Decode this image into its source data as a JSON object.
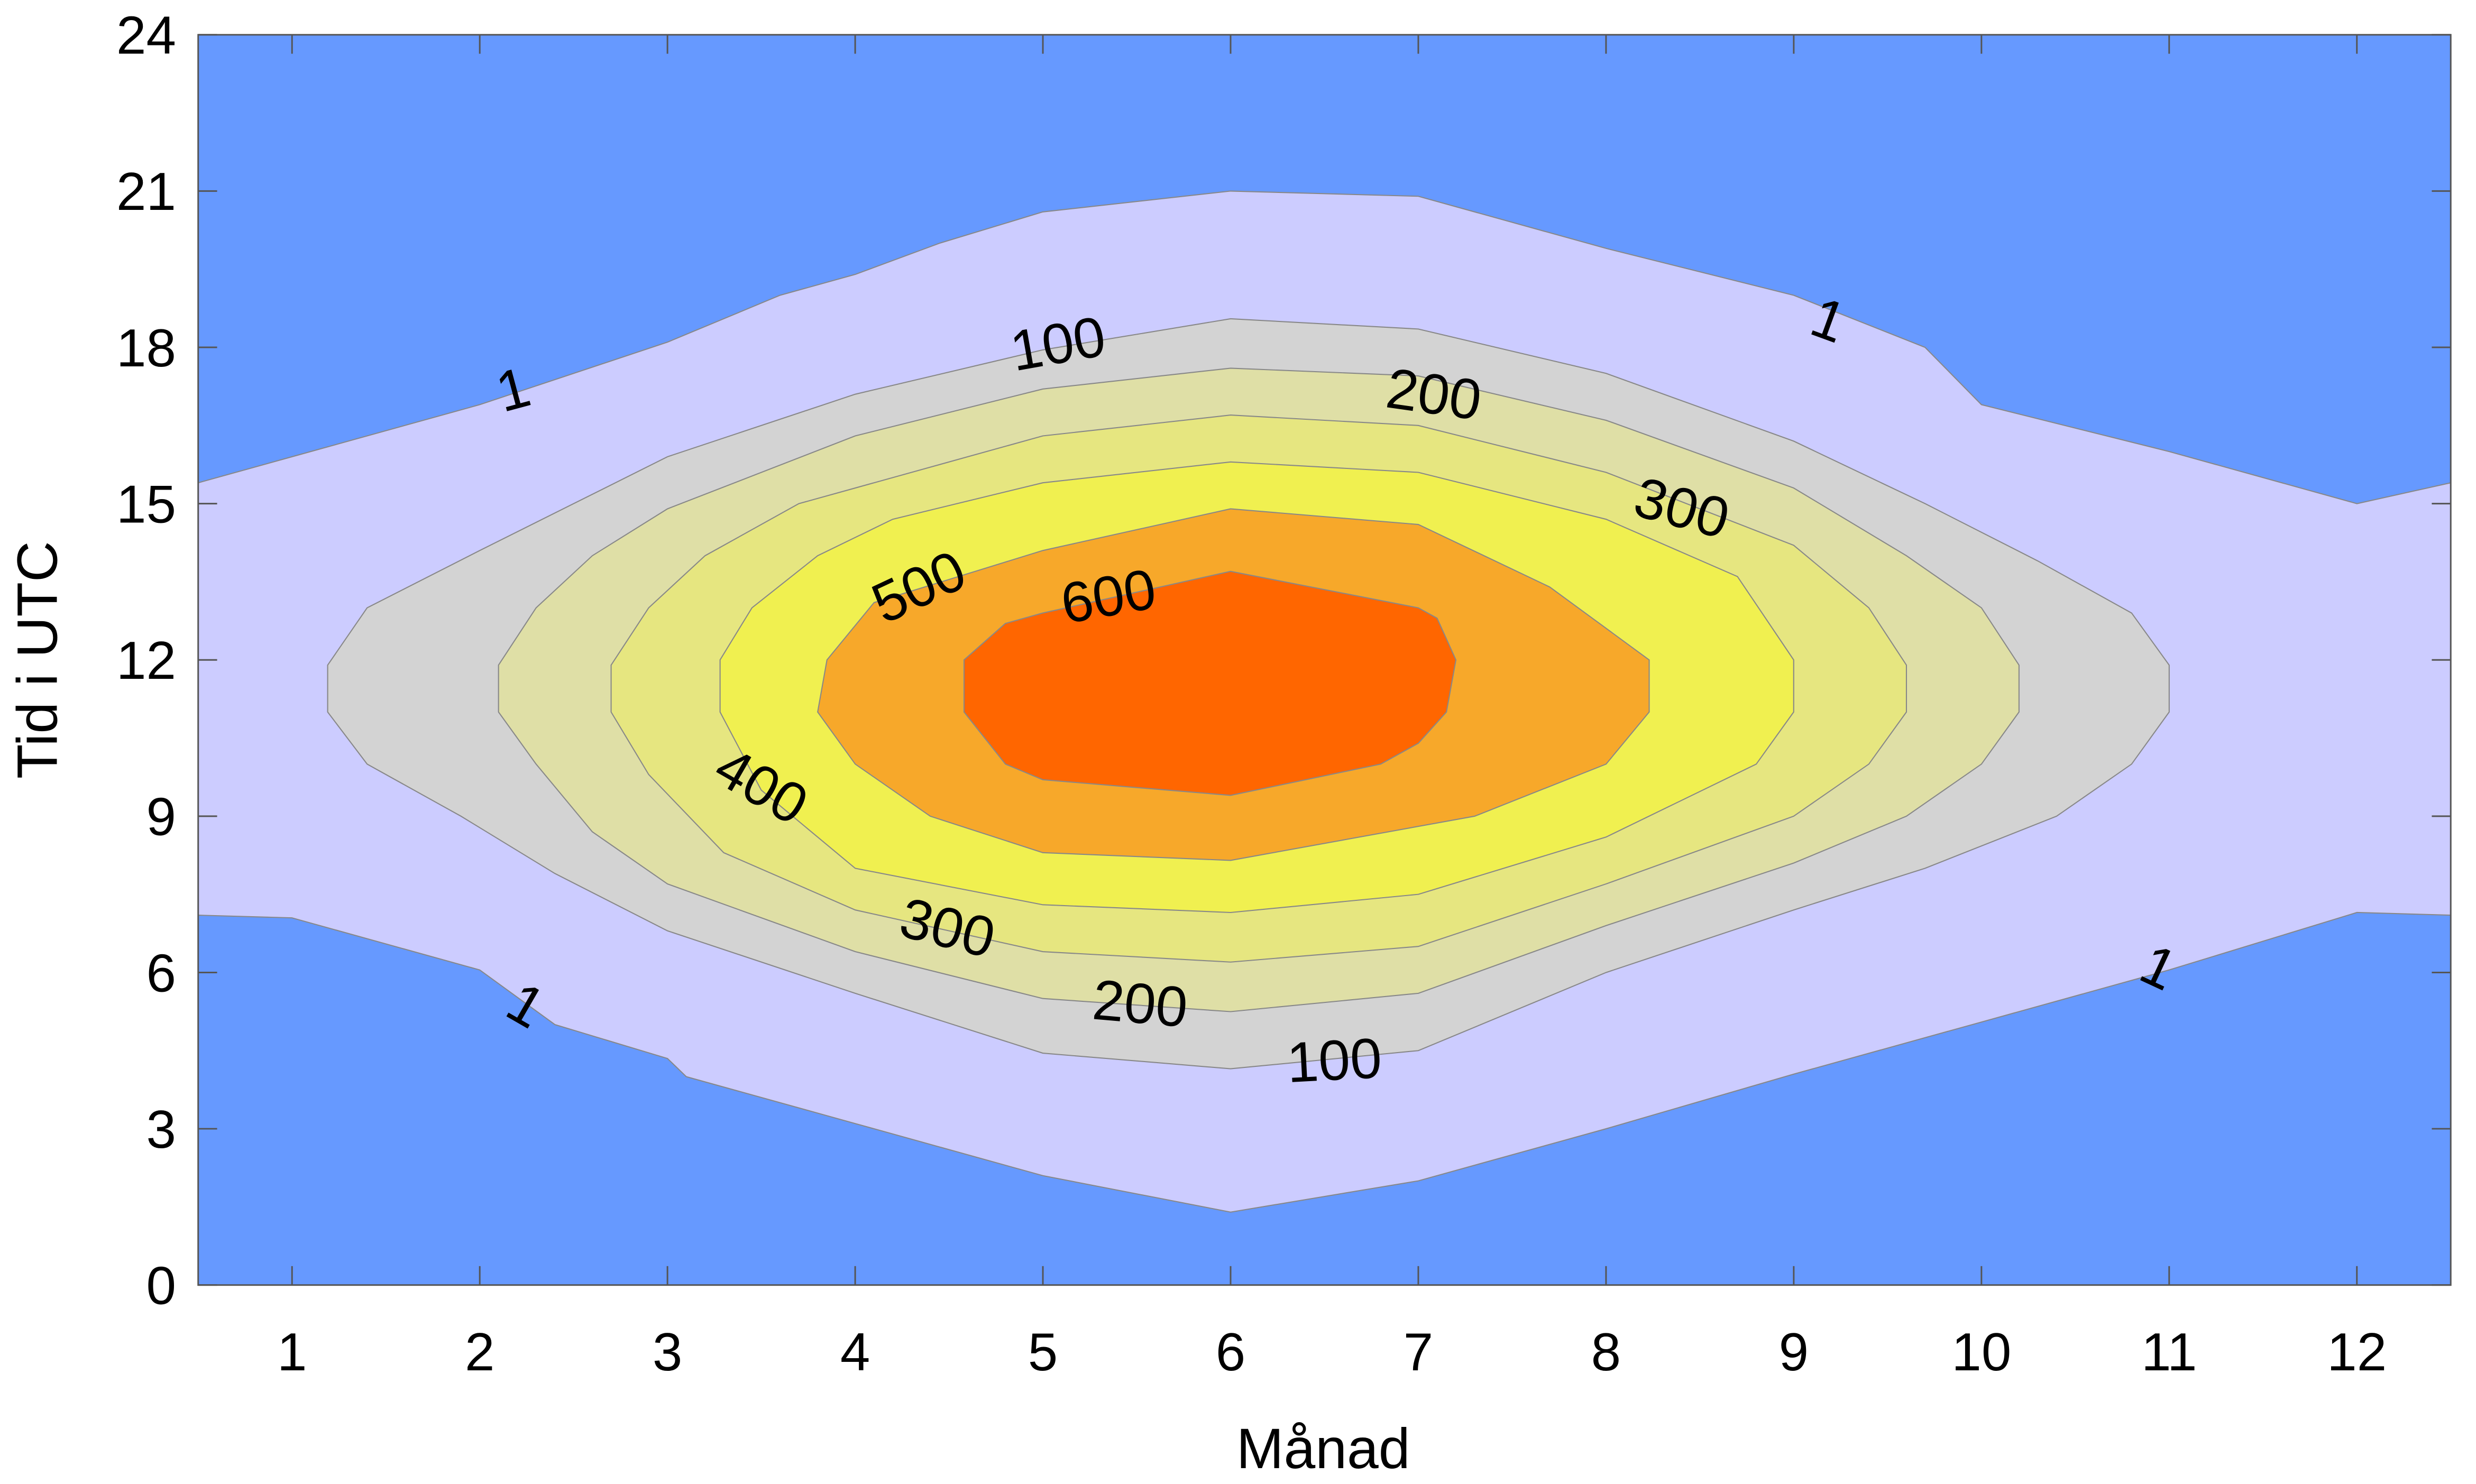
{
  "chart_data": {
    "type": "contour",
    "xlabel": "Månad",
    "ylabel": "Tid i UTC",
    "xlim": [
      0.5,
      12.5
    ],
    "ylim": [
      0,
      24
    ],
    "xticks": [
      1,
      2,
      3,
      4,
      5,
      6,
      7,
      8,
      9,
      10,
      11,
      12
    ],
    "yticks": [
      0,
      3,
      6,
      9,
      12,
      15,
      18,
      21,
      24
    ],
    "grid": false,
    "levels": [
      1,
      100,
      200,
      300,
      400,
      500,
      600
    ],
    "colors": {
      "below_1": "#6699FF",
      "1-100": "#CCCCFF",
      "100-200": "#D3D3D3",
      "200-300": "#DFDFA6",
      "300-400": "#E6E680",
      "400-500": "#F0F050",
      "500-600": "#F7A82A",
      "above_600": "#FF6600",
      "contour_line": "#888888"
    },
    "level_1_band": {
      "upper": [
        [
          0.5,
          15.4
        ],
        [
          1,
          15.9
        ],
        [
          2,
          16.9
        ],
        [
          3,
          18.1
        ],
        [
          3.6,
          19.0
        ],
        [
          4,
          19.4
        ],
        [
          4.45,
          20.0
        ],
        [
          5,
          20.6
        ],
        [
          6,
          21.0
        ],
        [
          7,
          20.9
        ],
        [
          8,
          19.9
        ],
        [
          9,
          19.0
        ],
        [
          9.7,
          18.0
        ],
        [
          10,
          16.9
        ],
        [
          11,
          16.0
        ],
        [
          12,
          15.0
        ],
        [
          12.5,
          15.4
        ]
      ],
      "lower": [
        [
          0.5,
          7.1
        ],
        [
          1,
          7.05
        ],
        [
          2,
          6.05
        ],
        [
          2.4,
          5.0
        ],
        [
          3,
          4.35
        ],
        [
          3.1,
          4.0
        ],
        [
          4,
          3.1
        ],
        [
          5,
          2.1
        ],
        [
          6,
          1.4
        ],
        [
          7,
          2.0
        ],
        [
          8,
          3.0
        ],
        [
          9,
          4.05
        ],
        [
          10,
          5.05
        ],
        [
          11,
          6.05
        ],
        [
          12,
          7.15
        ],
        [
          12.5,
          7.1
        ]
      ]
    },
    "closed_contours": [
      {
        "level": 100,
        "points": [
          [
            1.19,
            11.0
          ],
          [
            1.19,
            11.9
          ],
          [
            1.4,
            13.0
          ],
          [
            2,
            14.1
          ],
          [
            2.5,
            15
          ],
          [
            3,
            15.9
          ],
          [
            4,
            17.1
          ],
          [
            5,
            17.95
          ],
          [
            6,
            18.55
          ],
          [
            7,
            18.35
          ],
          [
            8,
            17.5
          ],
          [
            9,
            16.2
          ],
          [
            9.7,
            15.0
          ],
          [
            10.3,
            13.9
          ],
          [
            10.8,
            12.9
          ],
          [
            11.0,
            11.9
          ],
          [
            11.0,
            11.0
          ],
          [
            10.8,
            10.0
          ],
          [
            10.4,
            9.0
          ],
          [
            9.7,
            8.0
          ],
          [
            9,
            7.2
          ],
          [
            8,
            6.0
          ],
          [
            7,
            4.5
          ],
          [
            6,
            4.15
          ],
          [
            5,
            4.45
          ],
          [
            4,
            5.6
          ],
          [
            3,
            6.8
          ],
          [
            2.4,
            7.9
          ],
          [
            1.9,
            9.0
          ],
          [
            1.4,
            10.0
          ]
        ]
      },
      {
        "level": 200,
        "points": [
          [
            2.1,
            11
          ],
          [
            2.1,
            11.9
          ],
          [
            2.3,
            13
          ],
          [
            2.6,
            14
          ],
          [
            3.0,
            14.9
          ],
          [
            4,
            16.3
          ],
          [
            5,
            17.2
          ],
          [
            6,
            17.6
          ],
          [
            7,
            17.45
          ],
          [
            8,
            16.6
          ],
          [
            9,
            15.3
          ],
          [
            9.6,
            14
          ],
          [
            10.0,
            13
          ],
          [
            10.2,
            11.9
          ],
          [
            10.2,
            11.0
          ],
          [
            10.0,
            10.0
          ],
          [
            9.6,
            9.0
          ],
          [
            9,
            8.1
          ],
          [
            8,
            6.9
          ],
          [
            7,
            5.6
          ],
          [
            6,
            5.25
          ],
          [
            5,
            5.5
          ],
          [
            4,
            6.4
          ],
          [
            3,
            7.7
          ],
          [
            2.6,
            8.7
          ],
          [
            2.3,
            10
          ]
        ]
      },
      {
        "level": 300,
        "points": [
          [
            2.7,
            11
          ],
          [
            2.7,
            11.9
          ],
          [
            2.9,
            13
          ],
          [
            3.2,
            14
          ],
          [
            3.7,
            15
          ],
          [
            4,
            15.3
          ],
          [
            5,
            16.3
          ],
          [
            6,
            16.7
          ],
          [
            7,
            16.5
          ],
          [
            8,
            15.6
          ],
          [
            9,
            14.2
          ],
          [
            9.4,
            13
          ],
          [
            9.6,
            11.9
          ],
          [
            9.6,
            11
          ],
          [
            9.4,
            10
          ],
          [
            9,
            9.0
          ],
          [
            8,
            7.7
          ],
          [
            7,
            6.5
          ],
          [
            6,
            6.2
          ],
          [
            5,
            6.4
          ],
          [
            4,
            7.2
          ],
          [
            3.3,
            8.3
          ],
          [
            2.9,
            9.8
          ]
        ]
      },
      {
        "level": 400,
        "points": [
          [
            3.28,
            11
          ],
          [
            3.28,
            12
          ],
          [
            3.45,
            13
          ],
          [
            3.8,
            14
          ],
          [
            4.2,
            14.7
          ],
          [
            5,
            15.4
          ],
          [
            6,
            15.8
          ],
          [
            7,
            15.6
          ],
          [
            8,
            14.7
          ],
          [
            8.7,
            13.6
          ],
          [
            9,
            12.0
          ],
          [
            9,
            11
          ],
          [
            8.8,
            10
          ],
          [
            8,
            8.6
          ],
          [
            7,
            7.5
          ],
          [
            6,
            7.15
          ],
          [
            5,
            7.3
          ],
          [
            4,
            8.0
          ],
          [
            3.5,
            9.5
          ]
        ]
      },
      {
        "level": 500,
        "points": [
          [
            3.8,
            11
          ],
          [
            3.85,
            12
          ],
          [
            4.1,
            13.1
          ],
          [
            5,
            14.1
          ],
          [
            6,
            14.9
          ],
          [
            7,
            14.6
          ],
          [
            7.7,
            13.4
          ],
          [
            8.23,
            12.0
          ],
          [
            8.23,
            11
          ],
          [
            8,
            10
          ],
          [
            7.3,
            9.0
          ],
          [
            6,
            8.15
          ],
          [
            5,
            8.3
          ],
          [
            4.4,
            9.0
          ],
          [
            4,
            10
          ]
        ]
      },
      {
        "level": 600,
        "points": [
          [
            4.58,
            11
          ],
          [
            4.58,
            12.0
          ],
          [
            4.8,
            12.7
          ],
          [
            5,
            12.9
          ],
          [
            6,
            13.7
          ],
          [
            7,
            13.0
          ],
          [
            7.1,
            12.8
          ],
          [
            7.2,
            12.0
          ],
          [
            7.15,
            11
          ],
          [
            7,
            10.4
          ],
          [
            6.8,
            10.0
          ],
          [
            6,
            9.4
          ],
          [
            5,
            9.7
          ],
          [
            4.8,
            10.0
          ]
        ]
      }
    ],
    "contour_labels": [
      "1",
      "100",
      "200",
      "300",
      "500",
      "600",
      "400",
      "300",
      "200",
      "100",
      "1",
      "1",
      "1"
    ]
  }
}
